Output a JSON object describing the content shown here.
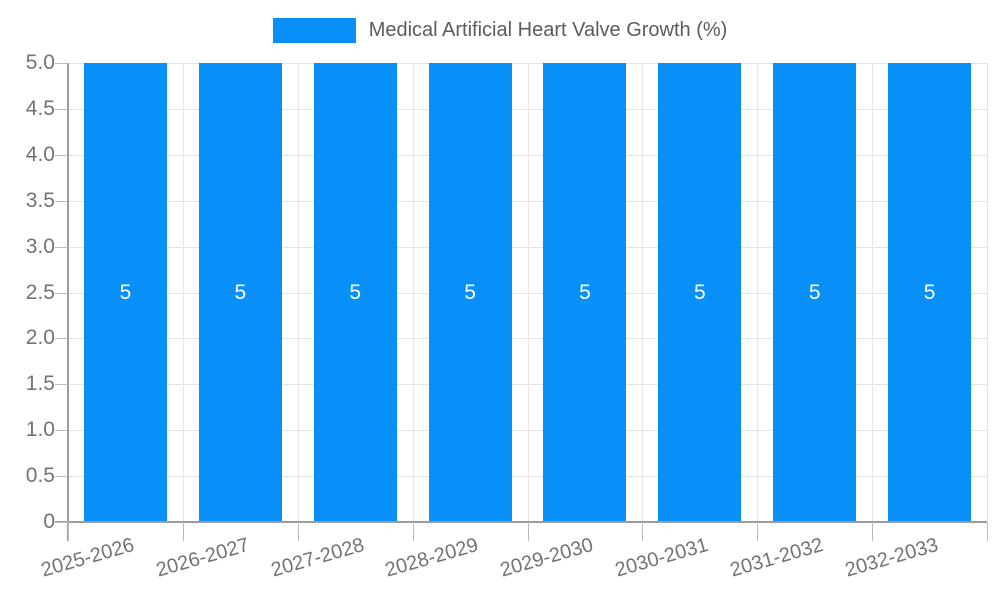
{
  "legend": {
    "label": "Medical Artificial Heart Valve Growth (%)"
  },
  "colors": {
    "background": "#ffffff",
    "bar": "#0890f8",
    "grid": "#e4e4e4",
    "axis": "#9c9c9c",
    "tick": "#bcbcbc",
    "label_text": "#737373",
    "legend_text": "#5a5b5d",
    "bar_label": "#ffffff"
  },
  "chart_data": {
    "type": "bar",
    "title": "Medical Artificial Heart Valve Growth (%)",
    "categories": [
      "2025-2026",
      "2026-2027",
      "2027-2028",
      "2028-2029",
      "2029-2030",
      "2030-2031",
      "2031-2032",
      "2032-2033"
    ],
    "values": [
      5,
      5,
      5,
      5,
      5,
      5,
      5,
      5
    ],
    "bar_labels": [
      "5",
      "5",
      "5",
      "5",
      "5",
      "5",
      "5",
      "5"
    ],
    "xlabel": "",
    "ylabel": "",
    "ylim": [
      0,
      5
    ],
    "ytick_step": 0.5,
    "yticks": [
      "5.0",
      "4.5",
      "4.0",
      "3.5",
      "3.0",
      "2.5",
      "2.0",
      "1.5",
      "1.0",
      "0.5",
      "0"
    ],
    "grid": true,
    "legend_position": "top",
    "x_label_rotation_deg": -16,
    "bar_value_label_position": "center"
  }
}
